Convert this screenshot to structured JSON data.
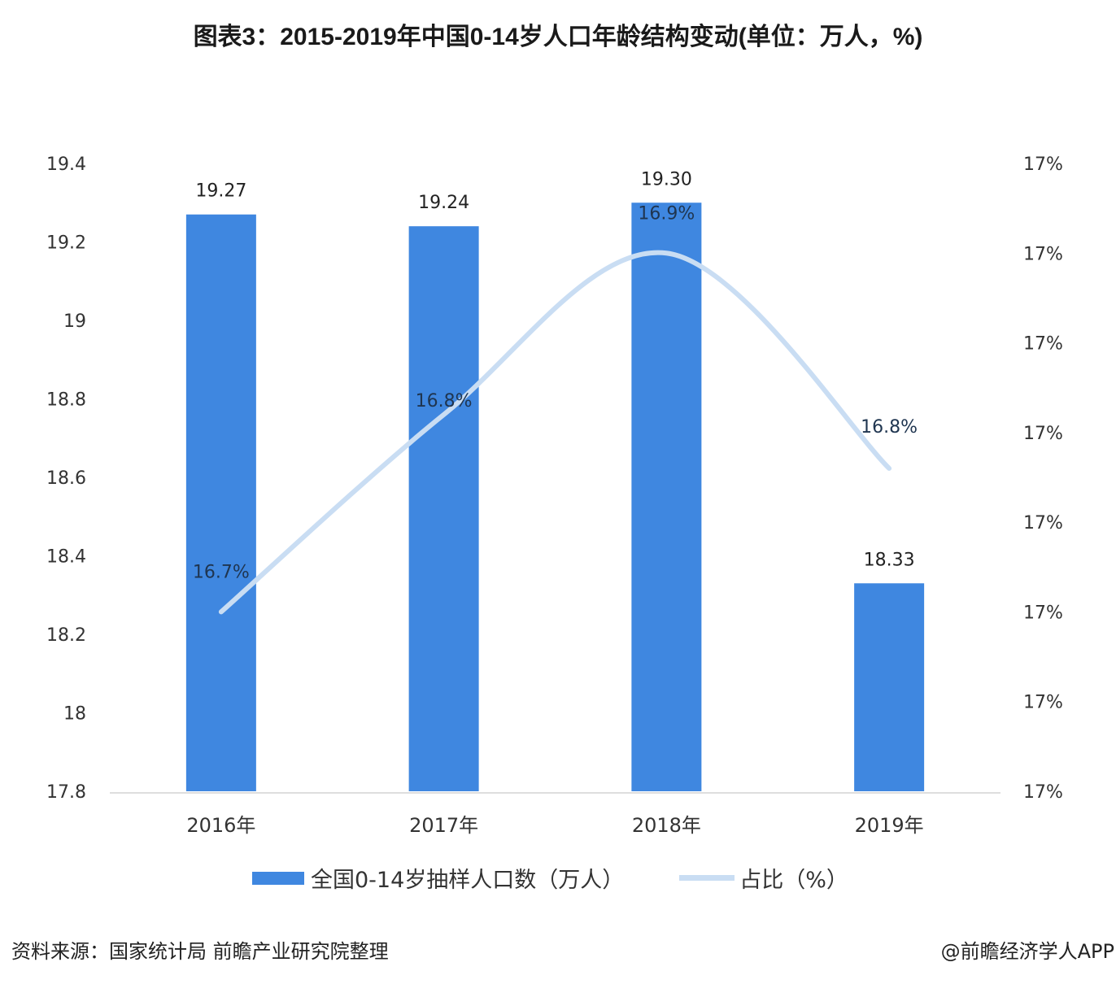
{
  "title": "图表3：2015-2019年中国0-14岁人口年龄结构变动(单位：万人，%)",
  "chart_data": {
    "type": "bar+line",
    "title": "图表3：2015-2019年中国0-14岁人口年龄结构变动(单位：万人，%)",
    "categories": [
      "2016年",
      "2017年",
      "2018年",
      "2019年"
    ],
    "series": [
      {
        "name": "全国0-14岁抽样人口数（万人）",
        "type": "bar",
        "axis": "left",
        "values": [
          19.27,
          19.24,
          19.3,
          18.33
        ],
        "labels": [
          "19.27",
          "19.24",
          "19.30",
          "18.33"
        ],
        "color": "#3F87E0"
      },
      {
        "name": "占比（%）",
        "type": "line",
        "axis": "right",
        "values": [
          16.7,
          16.81,
          16.9,
          16.78
        ],
        "labels": [
          "16.7%",
          "16.8%",
          "16.9%",
          "16.8%"
        ],
        "color": "#C9DDF3"
      }
    ],
    "y_left": {
      "lim": [
        17.8,
        19.4
      ],
      "ticks": [
        "17.8",
        "18",
        "18.2",
        "18.4",
        "18.6",
        "18.8",
        "19",
        "19.2",
        "19.4"
      ]
    },
    "y_right": {
      "lim": [
        16.6,
        16.95
      ],
      "ticks": [
        "17%",
        "17%",
        "17%",
        "17%",
        "17%",
        "17%",
        "17%",
        "17%"
      ]
    },
    "grid": false,
    "legend": "bottom"
  },
  "legend": {
    "bar": "全国0-14岁抽样人口数（万人）",
    "line": "占比（%）"
  },
  "source": "资料来源：国家统计局 前瞻产业研究院整理",
  "credit": "@前瞻经济学人APP"
}
